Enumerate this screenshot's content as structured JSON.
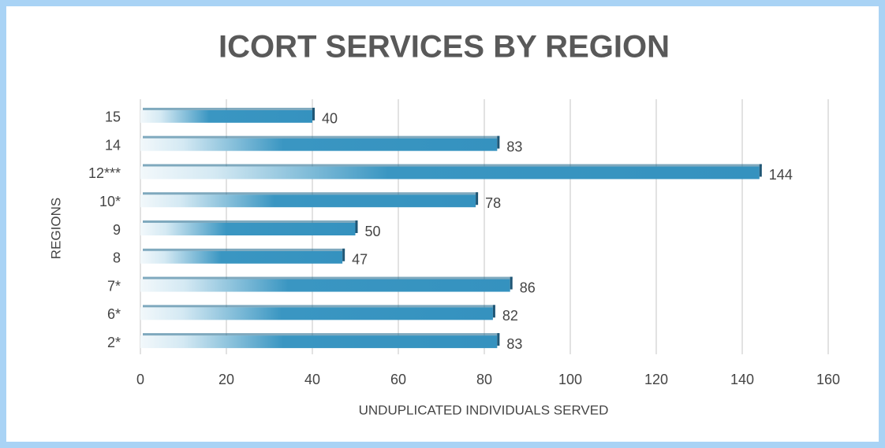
{
  "chart_data": {
    "type": "bar",
    "orientation": "horizontal",
    "title": "ICORT SERVICES BY REGION",
    "x_label": "UNDUPLICATED INDIVIDUALS SERVED",
    "y_label": "REGIONS",
    "categories": [
      "15",
      "14",
      "12***",
      "10*",
      "9",
      "8",
      "7*",
      "6*",
      "2*"
    ],
    "values": [
      40,
      83,
      144,
      78,
      50,
      47,
      86,
      82,
      83
    ],
    "color": "#3a96c2",
    "xlim": [
      0,
      160
    ],
    "xticks": [
      0,
      20,
      40,
      60,
      80,
      100,
      120,
      140,
      160
    ],
    "grid": true
  }
}
